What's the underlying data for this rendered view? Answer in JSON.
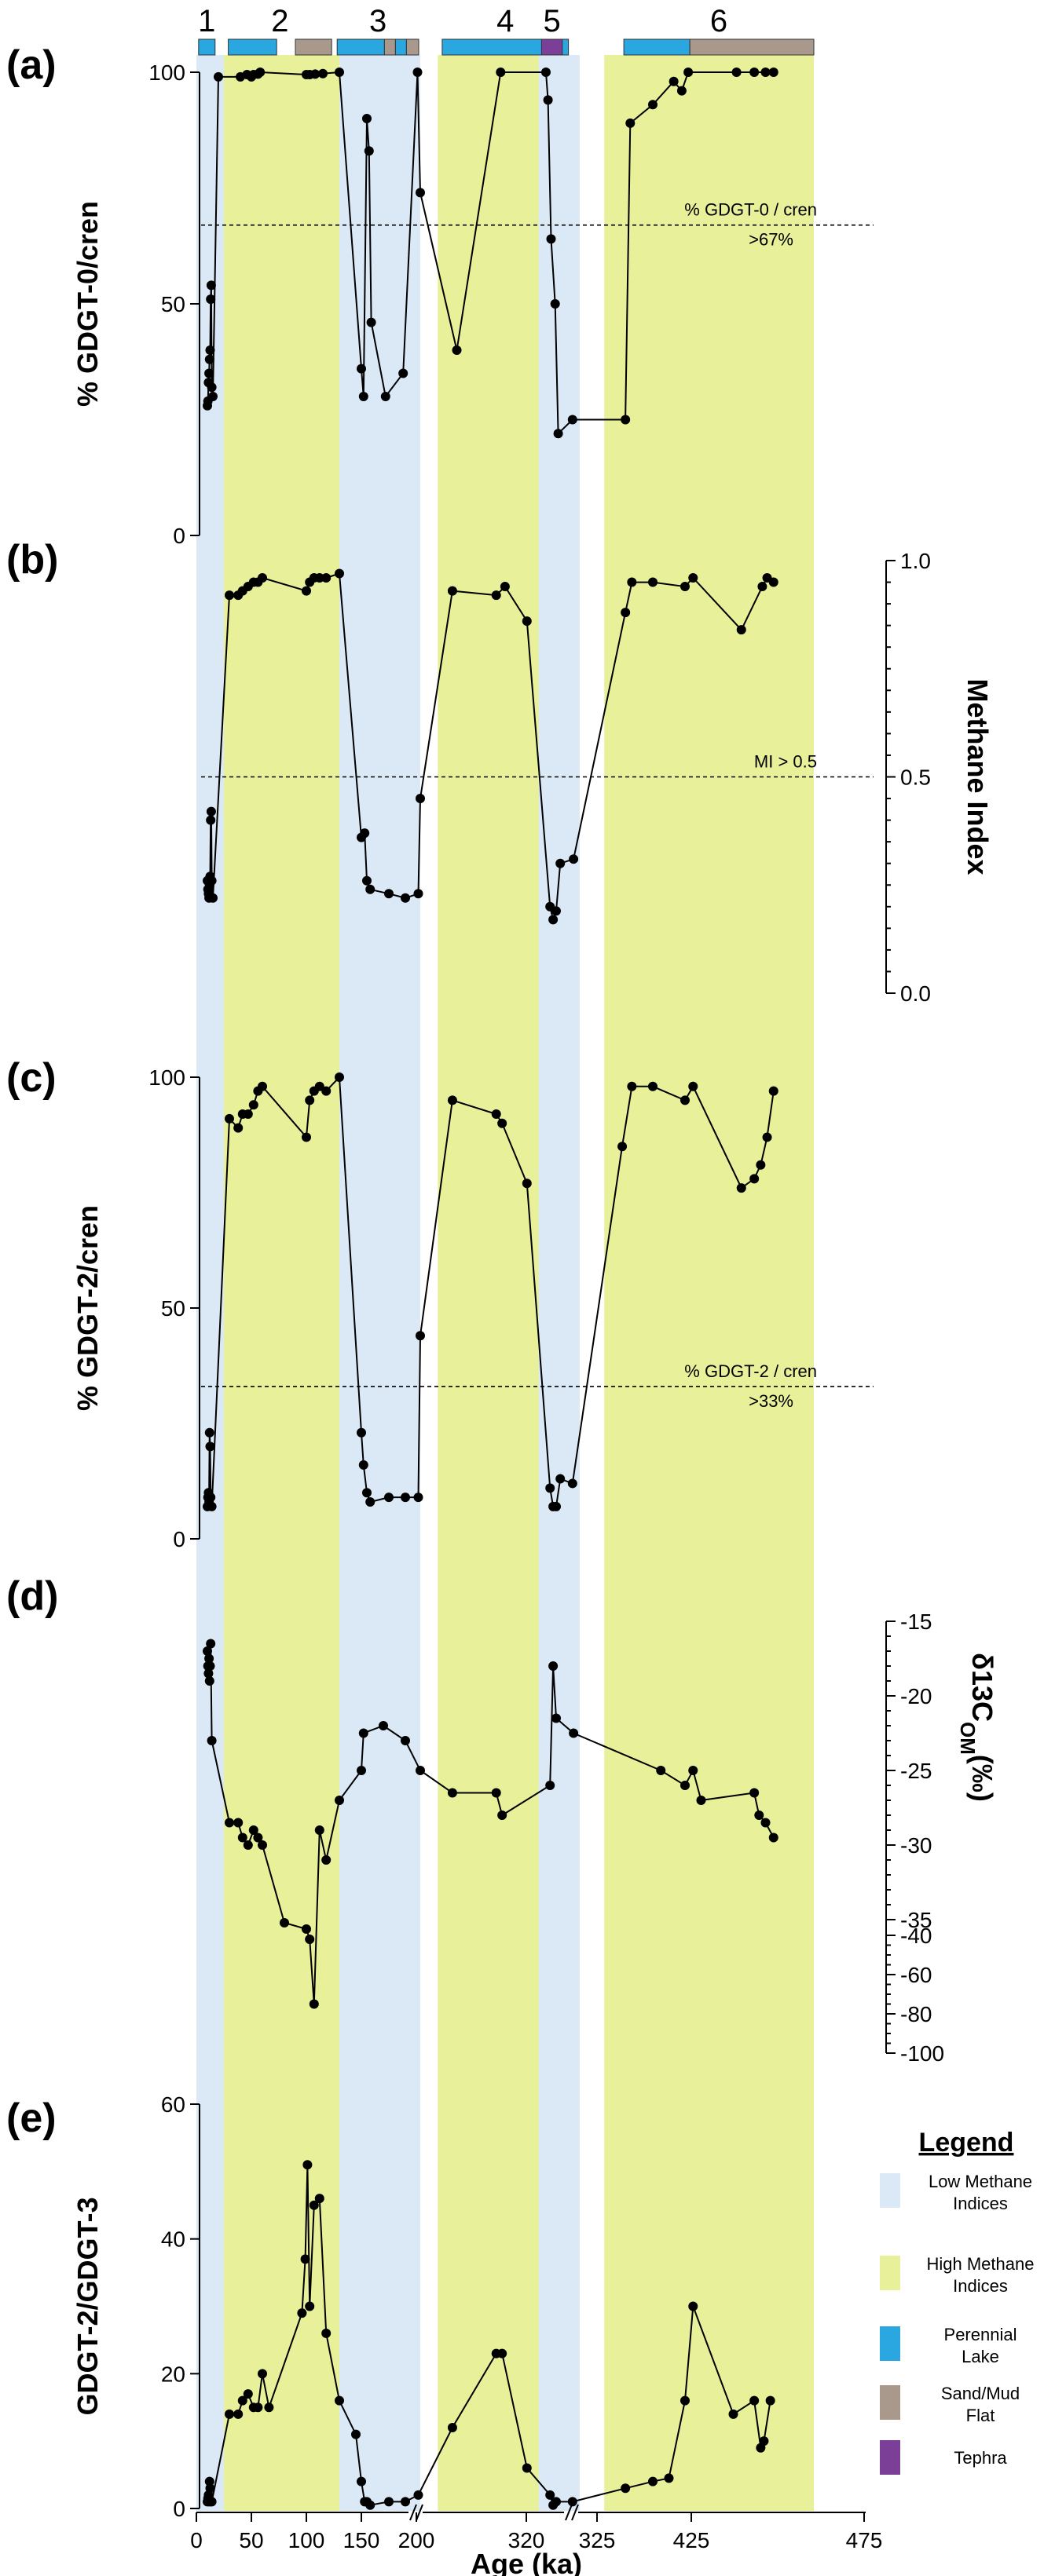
{
  "zones": [
    {
      "label": "1",
      "type": "low",
      "x0": 0,
      "x1": 25,
      "bar": [
        {
          "x0": 2,
          "x1": 17,
          "kind": "lake"
        }
      ]
    },
    {
      "label": "2",
      "type": "high",
      "x0": 25,
      "x1": 130,
      "bar": [
        {
          "x0": 29,
          "x1": 73,
          "kind": "lake"
        },
        {
          "x0": 90,
          "x1": 123,
          "kind": "flat"
        }
      ]
    },
    {
      "label": "3",
      "type": "low",
      "x0": 130,
      "x1": 210,
      "bar": [
        {
          "x0": 128,
          "x1": 171,
          "kind": "lake"
        },
        {
          "x0": 171,
          "x1": 181,
          "kind": "flat"
        },
        {
          "x0": 181,
          "x1": 191,
          "kind": "lake"
        },
        {
          "x0": 191,
          "x1": 206,
          "kind": "flat"
        }
      ]
    },
    {
      "label": "4",
      "type": "high",
      "x0": 222,
      "x1": 318,
      "bar": [
        {
          "x0": 225,
          "x1": 318,
          "kind": "lake"
        }
      ]
    },
    {
      "label": "5",
      "type": "low",
      "x0": 291,
      "x1": 329,
      "bar": [
        {
          "x0": 293,
          "x1": 312,
          "kind": "tephra"
        }
      ]
    },
    {
      "label": "6",
      "type": "high",
      "x0": 355,
      "x1": 475,
      "bar": [
        {
          "x0": 357,
          "x1": 398,
          "kind": "lake"
        },
        {
          "x0": 398,
          "x1": 475,
          "kind": "flat"
        }
      ]
    }
  ],
  "colors": {
    "low": "#dbe9f6",
    "high": "#e8f09a",
    "lake": "#2aa7e0",
    "flat": "#a8998c",
    "tephra": "#7b3f97"
  },
  "chart_data": [
    {
      "id": "a",
      "type": "line",
      "panel_label": "(a)",
      "ylabel": "% GDGT-0/cren",
      "ylim": [
        0,
        100
      ],
      "yticks": [
        0,
        50,
        100
      ],
      "y_side": "left",
      "threshold": {
        "value": 67,
        "label_1": "% GDGT-0 / cren",
        "label_2": ">67%"
      },
      "points": [
        [
          10,
          28
        ],
        [
          10.5,
          29
        ],
        [
          11,
          33
        ],
        [
          11.5,
          35
        ],
        [
          12,
          38
        ],
        [
          12.5,
          40
        ],
        [
          13,
          51
        ],
        [
          13.5,
          54
        ],
        [
          14,
          32
        ],
        [
          15,
          30
        ],
        [
          20,
          99
        ],
        [
          40,
          99
        ],
        [
          46,
          99.5
        ],
        [
          50,
          99
        ],
        [
          52,
          99.5
        ],
        [
          56,
          99.6
        ],
        [
          58,
          100
        ],
        [
          100,
          99.5
        ],
        [
          103,
          99.5
        ],
        [
          108,
          99.6
        ],
        [
          115,
          99.7
        ],
        [
          130,
          100
        ],
        [
          150,
          36
        ],
        [
          152,
          30
        ],
        [
          155,
          90
        ],
        [
          157,
          83
        ],
        [
          159,
          46
        ],
        [
          172,
          30
        ],
        [
          188,
          35
        ],
        [
          203,
          100
        ],
        [
          210,
          74
        ],
        [
          235,
          40
        ],
        [
          265,
          100
        ],
        [
          296,
          100
        ],
        [
          298,
          94
        ],
        [
          301,
          64
        ],
        [
          305,
          50
        ],
        [
          308,
          22
        ],
        [
          322,
          25
        ],
        [
          358,
          25
        ],
        [
          361,
          89
        ],
        [
          375,
          93
        ],
        [
          388,
          98
        ],
        [
          393,
          96
        ],
        [
          397,
          100
        ],
        [
          427,
          100
        ],
        [
          438,
          100
        ],
        [
          445,
          100
        ],
        [
          450,
          100
        ]
      ]
    },
    {
      "id": "b",
      "type": "line",
      "panel_label": "(b)",
      "ylabel": "Methane Index",
      "ylim": [
        0,
        1
      ],
      "yticks": [
        "0.0",
        "0.5",
        "1.0"
      ],
      "y_side": "right",
      "threshold": {
        "value": 0.5,
        "label_1": "MI > 0.5",
        "label_2": ""
      },
      "points": [
        [
          10,
          0.26
        ],
        [
          10.5,
          0.24
        ],
        [
          11,
          0.23
        ],
        [
          11.5,
          0.22
        ],
        [
          12,
          0.25
        ],
        [
          12.5,
          0.27
        ],
        [
          13,
          0.4
        ],
        [
          13.5,
          0.42
        ],
        [
          14,
          0.26
        ],
        [
          15,
          0.22
        ],
        [
          30,
          0.92
        ],
        [
          38,
          0.92
        ],
        [
          42,
          0.93
        ],
        [
          47,
          0.94
        ],
        [
          52,
          0.95
        ],
        [
          56,
          0.95
        ],
        [
          60,
          0.96
        ],
        [
          100,
          0.93
        ],
        [
          103,
          0.95
        ],
        [
          107,
          0.96
        ],
        [
          112,
          0.96
        ],
        [
          118,
          0.96
        ],
        [
          130,
          0.97
        ],
        [
          150,
          0.36
        ],
        [
          153,
          0.37
        ],
        [
          155,
          0.26
        ],
        [
          158,
          0.24
        ],
        [
          175,
          0.23
        ],
        [
          190,
          0.22
        ],
        [
          205,
          0.23
        ],
        [
          210,
          0.45
        ],
        [
          232,
          0.93
        ],
        [
          262,
          0.92
        ],
        [
          268,
          0.94
        ],
        [
          283,
          0.86
        ],
        [
          300,
          0.2
        ],
        [
          303,
          0.17
        ],
        [
          306,
          0.19
        ],
        [
          310,
          0.3
        ],
        [
          323,
          0.31
        ],
        [
          358,
          0.88
        ],
        [
          362,
          0.95
        ],
        [
          375,
          0.95
        ],
        [
          395,
          0.94
        ],
        [
          400,
          0.96
        ],
        [
          430,
          0.84
        ],
        [
          443,
          0.94
        ],
        [
          446,
          0.96
        ],
        [
          450,
          0.95
        ]
      ]
    },
    {
      "id": "c",
      "type": "line",
      "panel_label": "(c)",
      "ylabel": "% GDGT-2/cren",
      "ylim": [
        0,
        100
      ],
      "yticks": [
        0,
        50,
        100
      ],
      "y_side": "left",
      "threshold": {
        "value": 33,
        "label_1": "% GDGT-2 / cren",
        "label_2": ">33%"
      },
      "points": [
        [
          10,
          7
        ],
        [
          10.5,
          9
        ],
        [
          11,
          10
        ],
        [
          11.5,
          8
        ],
        [
          12,
          23
        ],
        [
          12.5,
          20
        ],
        [
          13,
          9
        ],
        [
          14,
          7
        ],
        [
          30,
          91
        ],
        [
          38,
          89
        ],
        [
          42,
          92
        ],
        [
          47,
          92
        ],
        [
          52,
          94
        ],
        [
          56,
          97
        ],
        [
          60,
          98
        ],
        [
          100,
          87
        ],
        [
          103,
          95
        ],
        [
          107,
          97
        ],
        [
          112,
          98
        ],
        [
          118,
          97
        ],
        [
          130,
          100
        ],
        [
          150,
          23
        ],
        [
          152,
          16
        ],
        [
          155,
          10
        ],
        [
          158,
          8
        ],
        [
          175,
          9
        ],
        [
          190,
          9
        ],
        [
          205,
          9
        ],
        [
          210,
          44
        ],
        [
          232,
          95
        ],
        [
          262,
          92
        ],
        [
          266,
          90
        ],
        [
          283,
          77
        ],
        [
          300,
          11
        ],
        [
          303,
          7
        ],
        [
          306,
          7
        ],
        [
          310,
          13
        ],
        [
          322,
          12
        ],
        [
          356,
          85
        ],
        [
          362,
          98
        ],
        [
          375,
          98
        ],
        [
          395,
          95
        ],
        [
          400,
          98
        ],
        [
          430,
          76
        ],
        [
          438,
          78
        ],
        [
          442,
          81
        ],
        [
          446,
          87
        ],
        [
          450,
          97
        ]
      ]
    },
    {
      "id": "d",
      "type": "line",
      "panel_label": "(d)",
      "y_side": "right",
      "ylabel": "δ13C",
      "ylabel_sub": "OM",
      "ylabel_unit": "(‰)",
      "yticks": [
        "-15",
        "-20",
        "-25",
        "-30",
        "-35",
        "-40",
        "-60",
        "-80",
        "-100"
      ],
      "points": [
        [
          10,
          -17
        ],
        [
          10.5,
          -18
        ],
        [
          11,
          -18.5
        ],
        [
          11.5,
          -17.5
        ],
        [
          12,
          -19
        ],
        [
          12.5,
          -18
        ],
        [
          13,
          -16.5
        ],
        [
          14,
          -23
        ],
        [
          30,
          -28.5
        ],
        [
          38,
          -28.5
        ],
        [
          42,
          -29.5
        ],
        [
          47,
          -30
        ],
        [
          52,
          -29
        ],
        [
          56,
          -29.5
        ],
        [
          60,
          -30
        ],
        [
          80,
          -36
        ],
        [
          100,
          -38
        ],
        [
          103,
          -42
        ],
        [
          107,
          -75
        ],
        [
          112,
          -29
        ],
        [
          118,
          -31
        ],
        [
          130,
          -27
        ],
        [
          150,
          -25
        ],
        [
          152,
          -22.5
        ],
        [
          170,
          -22
        ],
        [
          190,
          -23
        ],
        [
          210,
          -25
        ],
        [
          232,
          -26.5
        ],
        [
          262,
          -26.5
        ],
        [
          266,
          -28
        ],
        [
          300,
          -26
        ],
        [
          303,
          -18
        ],
        [
          306,
          -21.5
        ],
        [
          323,
          -22.5
        ],
        [
          380,
          -25
        ],
        [
          395,
          -26
        ],
        [
          400,
          -25
        ],
        [
          405,
          -27
        ],
        [
          438,
          -26.5
        ],
        [
          441,
          -28
        ],
        [
          445,
          -28.5
        ],
        [
          450,
          -29.5
        ]
      ]
    },
    {
      "id": "e",
      "type": "line",
      "panel_label": "(e)",
      "ylabel": "GDGT-2/GDGT-3",
      "ylim": [
        0,
        60
      ],
      "yticks": [
        0,
        20,
        40,
        60
      ],
      "y_side": "left",
      "points": [
        [
          10,
          1
        ],
        [
          10.5,
          1.5
        ],
        [
          11,
          2
        ],
        [
          11.5,
          1
        ],
        [
          12,
          4
        ],
        [
          12.5,
          3
        ],
        [
          13,
          1
        ],
        [
          14,
          1
        ],
        [
          30,
          14
        ],
        [
          38,
          14
        ],
        [
          42,
          16
        ],
        [
          47,
          17
        ],
        [
          52,
          15
        ],
        [
          56,
          15
        ],
        [
          60,
          20
        ],
        [
          66,
          15
        ],
        [
          96,
          29
        ],
        [
          99,
          37
        ],
        [
          101,
          51
        ],
        [
          103,
          30
        ],
        [
          107,
          45
        ],
        [
          112,
          46
        ],
        [
          118,
          26
        ],
        [
          130,
          16
        ],
        [
          145,
          11
        ],
        [
          150,
          4
        ],
        [
          153,
          1
        ],
        [
          155,
          1
        ],
        [
          158,
          0.5
        ],
        [
          175,
          1
        ],
        [
          190,
          1
        ],
        [
          205,
          2
        ],
        [
          232,
          12
        ],
        [
          262,
          23
        ],
        [
          266,
          23
        ],
        [
          283,
          6
        ],
        [
          300,
          2
        ],
        [
          303,
          0.5
        ],
        [
          306,
          1
        ],
        [
          322,
          1
        ],
        [
          358,
          3
        ],
        [
          375,
          4
        ],
        [
          385,
          4.5
        ],
        [
          395,
          16
        ],
        [
          400,
          30
        ],
        [
          425,
          14
        ],
        [
          438,
          16
        ],
        [
          442,
          9
        ],
        [
          444,
          10
        ],
        [
          448,
          16
        ]
      ]
    }
  ],
  "x_axis": {
    "label": "Age (ka)",
    "ticks": [
      "0",
      "50",
      "100",
      "150",
      "200",
      "320",
      "325",
      "425",
      "475"
    ]
  },
  "legend": {
    "title": "Legend",
    "items": [
      {
        "key": "low",
        "label_1": "Low Methane",
        "label_2": "Indices"
      },
      {
        "key": "high",
        "label_1": "High Methane",
        "label_2": "Indices"
      },
      {
        "key": "lake",
        "label_1": "Perennial",
        "label_2": "Lake"
      },
      {
        "key": "flat",
        "label_1": "Sand/Mud",
        "label_2": "Flat"
      },
      {
        "key": "tephra",
        "label_1": "Tephra",
        "label_2": ""
      }
    ]
  }
}
